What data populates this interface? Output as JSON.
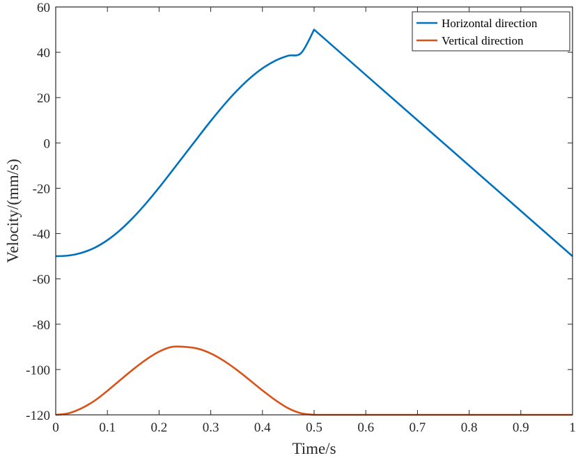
{
  "chart_data": {
    "type": "line",
    "xlabel": "Time/s",
    "ylabel": "Velocity/(mm/s)",
    "xlim": [
      0,
      1
    ],
    "ylim": [
      -120,
      60
    ],
    "xticks": [
      0,
      0.1,
      0.2,
      0.3,
      0.4,
      0.5,
      0.6,
      0.7,
      0.8,
      0.9,
      1
    ],
    "xtick_labels": [
      "0",
      "0.1",
      "0.2",
      "0.3",
      "0.4",
      "0.5",
      "0.6",
      "0.7",
      "0.8",
      "0.9",
      "1"
    ],
    "yticks": [
      -120,
      -100,
      -80,
      -60,
      -40,
      -20,
      0,
      20,
      40,
      60
    ],
    "ytick_labels": [
      "-120",
      "-100",
      "-80",
      "-60",
      "-40",
      "-20",
      "0",
      "20",
      "40",
      "60"
    ],
    "grid": false,
    "legend_position": "top-right",
    "series": [
      {
        "name": "Horizontal direction",
        "color": "#0072BD",
        "x": [
          0,
          0.025,
          0.05,
          0.075,
          0.1,
          0.125,
          0.15,
          0.175,
          0.2,
          0.225,
          0.25,
          0.275,
          0.3,
          0.325,
          0.35,
          0.375,
          0.4,
          0.425,
          0.45,
          0.475,
          0.5,
          0.6,
          0.7,
          0.8,
          0.9,
          1
        ],
        "y": [
          -50,
          -49.7,
          -48.5,
          -46.3,
          -42.9,
          -38.4,
          -32.9,
          -26.6,
          -19.7,
          -12.4,
          -5,
          2.4,
          9.7,
          16.6,
          22.9,
          28.4,
          32.9,
          36.3,
          38.5,
          39.7,
          50,
          30,
          10,
          -10,
          -30,
          -50
        ]
      },
      {
        "name": "Vertical direction",
        "color": "#D95319",
        "x": [
          0,
          0.025,
          0.05,
          0.075,
          0.1,
          0.125,
          0.15,
          0.175,
          0.2,
          0.225,
          0.25,
          0.275,
          0.3,
          0.325,
          0.35,
          0.375,
          0.4,
          0.425,
          0.45,
          0.475,
          0.5,
          0.6,
          0.7,
          0.8,
          0.9,
          1
        ],
        "y": [
          -120,
          -119.3,
          -117.1,
          -113.8,
          -109.4,
          -104.6,
          -99.9,
          -95.6,
          -92.1,
          -90,
          -90,
          -90.8,
          -92.9,
          -96.1,
          -100.1,
          -104.6,
          -109.2,
          -113.5,
          -117.1,
          -119.3,
          -120,
          -120,
          -120,
          -120,
          -120,
          -120
        ]
      }
    ]
  }
}
